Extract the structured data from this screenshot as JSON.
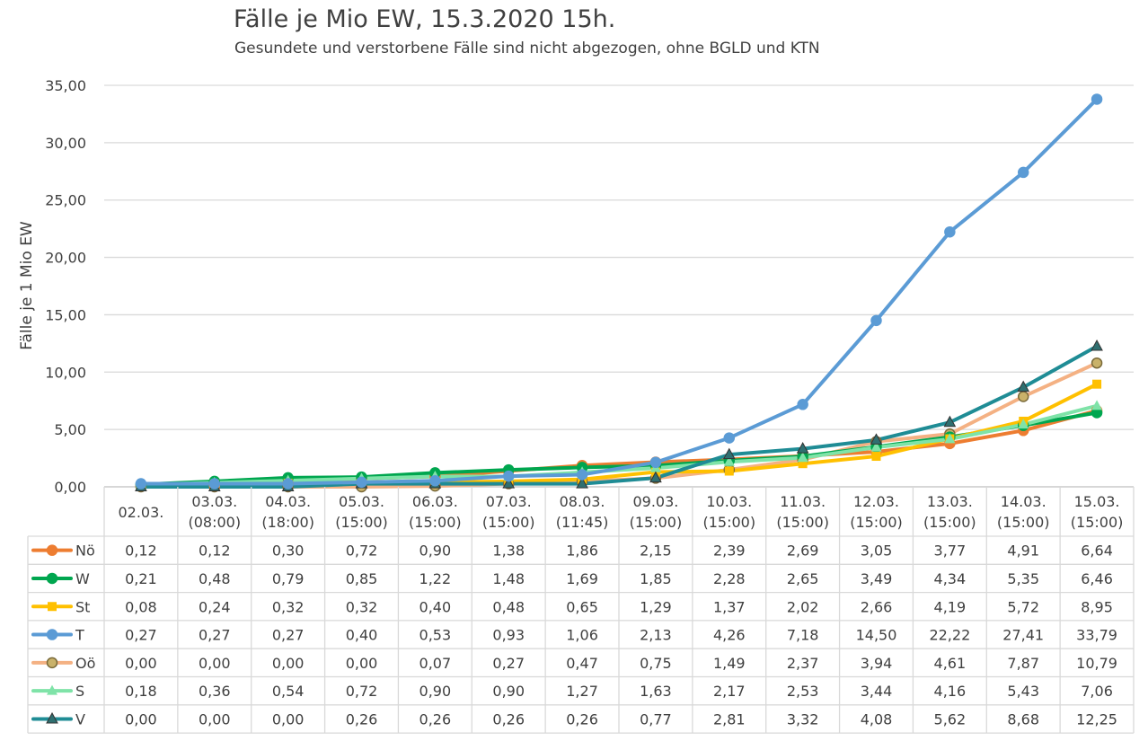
{
  "chart_data": {
    "type": "line",
    "title": "Fälle je Mio EW, 15.3.2020 15h.",
    "subtitle": "Gesundete und verstorbene Fälle sind nicht abgezogen, ohne BGLD und KTN",
    "ylabel": "Fälle je 1 Mio EW",
    "ylim": [
      0,
      35
    ],
    "yticks": [
      "0,00",
      "5,00",
      "10,00",
      "15,00",
      "20,00",
      "25,00",
      "30,00",
      "35,00"
    ],
    "grid": true,
    "legend": "data-table",
    "categories": [
      [
        "02.03.",
        ""
      ],
      [
        "03.03.",
        "(08:00)"
      ],
      [
        "04.03.",
        "(18:00)"
      ],
      [
        "05.03.",
        "(15:00)"
      ],
      [
        "06.03.",
        "(15:00)"
      ],
      [
        "07.03.",
        "(15:00)"
      ],
      [
        "08.03.",
        "(11:45)"
      ],
      [
        "09.03.",
        "(15:00)"
      ],
      [
        "10.03.",
        "(15:00)"
      ],
      [
        "11.03.",
        "(15:00)"
      ],
      [
        "12.03.",
        "(15:00)"
      ],
      [
        "13.03.",
        "(15:00)"
      ],
      [
        "14.03.",
        "(15:00)"
      ],
      [
        "15.03.",
        "(15:00)"
      ]
    ],
    "series": [
      {
        "name": "Nö",
        "color": "#ED7D31",
        "marker": "circle",
        "markerFill": "#ED7D31",
        "values": [
          0.12,
          0.12,
          0.3,
          0.72,
          0.9,
          1.38,
          1.86,
          2.15,
          2.39,
          2.69,
          3.05,
          3.77,
          4.91,
          6.64
        ],
        "labels": [
          "0,12",
          "0,12",
          "0,30",
          "0,72",
          "0,90",
          "1,38",
          "1,86",
          "2,15",
          "2,39",
          "2,69",
          "3,05",
          "3,77",
          "4,91",
          "6,64"
        ]
      },
      {
        "name": "W",
        "color": "#00A64F",
        "marker": "circle",
        "markerFill": "#00A64F",
        "values": [
          0.21,
          0.48,
          0.79,
          0.85,
          1.22,
          1.48,
          1.69,
          1.85,
          2.28,
          2.65,
          3.49,
          4.34,
          5.35,
          6.46
        ],
        "labels": [
          "0,21",
          "0,48",
          "0,79",
          "0,85",
          "1,22",
          "1,48",
          "1,69",
          "1,85",
          "2,28",
          "2,65",
          "3,49",
          "4,34",
          "5,35",
          "6,46"
        ]
      },
      {
        "name": "St",
        "color": "#FFC000",
        "marker": "square",
        "markerFill": "#FFC000",
        "values": [
          0.08,
          0.24,
          0.32,
          0.32,
          0.4,
          0.48,
          0.65,
          1.29,
          1.37,
          2.02,
          2.66,
          4.19,
          5.72,
          8.95
        ],
        "labels": [
          "0,08",
          "0,24",
          "0,32",
          "0,32",
          "0,40",
          "0,48",
          "0,65",
          "1,29",
          "1,37",
          "2,02",
          "2,66",
          "4,19",
          "5,72",
          "8,95"
        ]
      },
      {
        "name": "T",
        "color": "#5B9BD5",
        "marker": "circle",
        "markerFill": "#5B9BD5",
        "values": [
          0.27,
          0.27,
          0.27,
          0.4,
          0.53,
          0.93,
          1.06,
          2.13,
          4.26,
          7.18,
          14.5,
          22.22,
          27.41,
          33.79
        ],
        "labels": [
          "0,27",
          "0,27",
          "0,27",
          "0,40",
          "0,53",
          "0,93",
          "1,06",
          "2,13",
          "4,26",
          "7,18",
          "14,50",
          "22,22",
          "27,41",
          "33,79"
        ]
      },
      {
        "name": "Oö",
        "color": "#F4B183",
        "marker": "circle",
        "markerFill": "#C9B26A",
        "values": [
          0.0,
          0.0,
          0.0,
          0.0,
          0.07,
          0.27,
          0.47,
          0.75,
          1.49,
          2.37,
          3.94,
          4.61,
          7.87,
          10.79
        ],
        "labels": [
          "0,00",
          "0,00",
          "0,00",
          "0,00",
          "0,07",
          "0,27",
          "0,47",
          "0,75",
          "1,49",
          "2,37",
          "3,94",
          "4,61",
          "7,87",
          "10,79"
        ]
      },
      {
        "name": "S",
        "color": "#7FE3A8",
        "marker": "triangle",
        "markerFill": "#7FE3A8",
        "values": [
          0.18,
          0.36,
          0.54,
          0.72,
          0.9,
          0.9,
          1.27,
          1.63,
          2.17,
          2.53,
          3.44,
          4.16,
          5.43,
          7.06
        ],
        "labels": [
          "0,18",
          "0,36",
          "0,54",
          "0,72",
          "0,90",
          "0,90",
          "1,27",
          "1,63",
          "2,17",
          "2,53",
          "3,44",
          "4,16",
          "5,43",
          "7,06"
        ]
      },
      {
        "name": "V",
        "color": "#1F8C95",
        "marker": "triangle",
        "markerFill": "#2F6F70",
        "values": [
          0.0,
          0.0,
          0.0,
          0.26,
          0.26,
          0.26,
          0.26,
          0.77,
          2.81,
          3.32,
          4.08,
          5.62,
          8.68,
          12.25
        ],
        "labels": [
          "0,00",
          "0,00",
          "0,00",
          "0,26",
          "0,26",
          "0,26",
          "0,26",
          "0,77",
          "2,81",
          "3,32",
          "4,08",
          "5,62",
          "8,68",
          "12,25"
        ]
      }
    ]
  }
}
